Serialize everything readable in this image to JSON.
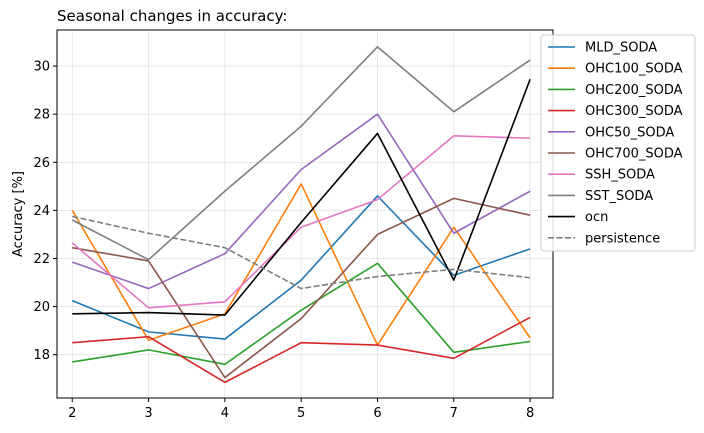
{
  "chart_data": {
    "type": "line",
    "title": "Seasonal changes in accuracy:",
    "xlabel": "",
    "ylabel": "Accuracy [%]",
    "x": [
      2,
      3,
      4,
      5,
      6,
      7,
      8
    ],
    "xlim": [
      1.8,
      8.3
    ],
    "ylim": [
      16.2,
      31.5
    ],
    "yticks": [
      18,
      20,
      22,
      24,
      26,
      28,
      30
    ],
    "grid": true,
    "legend_position": "upper right, outside",
    "series": [
      {
        "name": "MLD_SODA",
        "color": "#1f77b4",
        "dash": "solid",
        "values": [
          20.25,
          18.95,
          18.65,
          21.1,
          24.6,
          21.3,
          22.4
        ]
      },
      {
        "name": "OHC100_SODA",
        "color": "#ff7f0e",
        "dash": "solid",
        "values": [
          24.0,
          18.6,
          19.7,
          25.1,
          18.4,
          23.3,
          18.7
        ]
      },
      {
        "name": "OHC200_SODA",
        "color": "#2ca02c",
        "dash": "solid",
        "values": [
          17.7,
          18.2,
          17.6,
          19.85,
          21.8,
          18.1,
          18.55
        ]
      },
      {
        "name": "OHC300_SODA",
        "color": "#d62728",
        "dash": "solid",
        "values": [
          18.5,
          18.75,
          16.85,
          18.5,
          18.4,
          17.85,
          19.55
        ]
      },
      {
        "name": "OHC50_SODA",
        "color": "#9467bd",
        "dash": "solid",
        "values": [
          21.85,
          20.75,
          22.2,
          25.7,
          28.0,
          23.05,
          24.8
        ]
      },
      {
        "name": "OHC700_SODA",
        "color": "#8c564b",
        "dash": "solid",
        "values": [
          22.45,
          21.9,
          17.05,
          19.5,
          23.0,
          24.5,
          23.8
        ]
      },
      {
        "name": "SSH_SODA",
        "color": "#e377c2",
        "dash": "solid",
        "values": [
          22.65,
          19.95,
          20.2,
          23.3,
          24.45,
          27.1,
          27.0
        ]
      },
      {
        "name": "SST_SODA",
        "color": "#7f7f7f",
        "dash": "solid",
        "values": [
          23.6,
          21.95,
          24.8,
          27.5,
          30.8,
          28.1,
          30.25
        ]
      },
      {
        "name": "ocn",
        "color": "#000000",
        "dash": "solid",
        "values": [
          19.7,
          19.75,
          19.65,
          23.5,
          27.2,
          21.1,
          29.45
        ]
      },
      {
        "name": "persistence",
        "color": "#7f7f7f",
        "dash": "dashed",
        "values": [
          23.75,
          23.05,
          22.45,
          20.75,
          21.25,
          21.55,
          21.2
        ]
      }
    ]
  }
}
